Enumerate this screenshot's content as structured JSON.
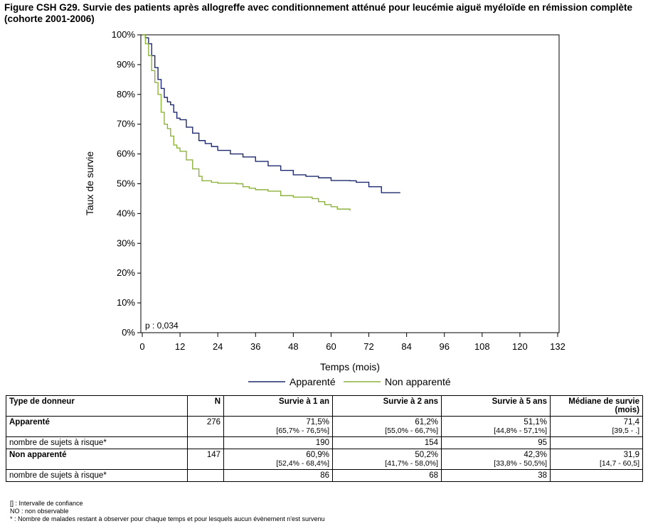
{
  "title": "Figure CSH G29. Survie des patients après allogreffe avec conditionnement atténué pour leucémie aiguë myéloïde en rémission complète (cohorte 2001-2006)",
  "chart_data": {
    "type": "line",
    "step": true,
    "ylabel": "Taux de survie",
    "xlabel": "Temps (mois)",
    "xlim": [
      0,
      132
    ],
    "ylim": [
      0,
      100
    ],
    "xticks": [
      0,
      12,
      24,
      36,
      48,
      60,
      72,
      84,
      96,
      108,
      120,
      132
    ],
    "yticks": [
      0,
      10,
      20,
      30,
      40,
      50,
      60,
      70,
      80,
      90,
      100
    ],
    "ytick_labels": [
      "0%",
      "10%",
      "20%",
      "30%",
      "40%",
      "50%",
      "60%",
      "70%",
      "80%",
      "90%",
      "100%"
    ],
    "annotation": "p : 0,034",
    "legend_position": "bottom",
    "grid": false,
    "series": [
      {
        "name": "Apparenté",
        "color": "#1f2a6e",
        "points": [
          [
            0,
            100
          ],
          [
            1,
            99
          ],
          [
            2,
            97
          ],
          [
            3,
            93
          ],
          [
            4,
            89
          ],
          [
            5,
            85
          ],
          [
            6,
            82
          ],
          [
            7,
            79
          ],
          [
            8,
            77.5
          ],
          [
            9,
            76.5
          ],
          [
            10,
            74
          ],
          [
            11,
            72
          ],
          [
            12,
            71.5
          ],
          [
            14,
            69
          ],
          [
            16,
            67
          ],
          [
            18,
            64.5
          ],
          [
            20,
            63.5
          ],
          [
            22,
            62.5
          ],
          [
            24,
            61.2
          ],
          [
            28,
            60
          ],
          [
            32,
            59
          ],
          [
            36,
            57.5
          ],
          [
            40,
            56
          ],
          [
            44,
            54.5
          ],
          [
            48,
            53
          ],
          [
            52,
            52.5
          ],
          [
            56,
            52
          ],
          [
            60,
            51.1
          ],
          [
            66,
            51
          ],
          [
            68,
            50.5
          ],
          [
            72,
            49
          ],
          [
            76,
            47
          ],
          [
            82,
            47
          ]
        ]
      },
      {
        "name": "Non apparenté",
        "color": "#8db33c",
        "points": [
          [
            0,
            100
          ],
          [
            1,
            97
          ],
          [
            2,
            93
          ],
          [
            3,
            88
          ],
          [
            4,
            84
          ],
          [
            5,
            80
          ],
          [
            6,
            74
          ],
          [
            7,
            70
          ],
          [
            8,
            68.5
          ],
          [
            9,
            66
          ],
          [
            10,
            63
          ],
          [
            11,
            62
          ],
          [
            12,
            60.9
          ],
          [
            14,
            58
          ],
          [
            16,
            55
          ],
          [
            18,
            52.5
          ],
          [
            19,
            51
          ],
          [
            22,
            50.5
          ],
          [
            24,
            50.2
          ],
          [
            30,
            50
          ],
          [
            32,
            49
          ],
          [
            34,
            48.5
          ],
          [
            36,
            48
          ],
          [
            40,
            47.5
          ],
          [
            44,
            46
          ],
          [
            48,
            45.5
          ],
          [
            54,
            45
          ],
          [
            56,
            44
          ],
          [
            58,
            43
          ],
          [
            60,
            42.3
          ],
          [
            62,
            41.5
          ],
          [
            66,
            41
          ]
        ]
      }
    ]
  },
  "table": {
    "headers": [
      "Type de donneur",
      "N",
      "Survie à 1 an",
      "Survie à 2 ans",
      "Survie à 5 ans",
      "Médiane de survie (mois)"
    ],
    "rows": [
      {
        "group": "Apparenté",
        "n": "276",
        "s1": "71,5%",
        "s1ci": "[65,7% - 76,5%]",
        "s2": "61,2%",
        "s2ci": "[55,0% - 66,7%]",
        "s5": "51,1%",
        "s5ci": "[44,8% - 57,1%]",
        "med": "71,4",
        "medci": "[39,5 - .]",
        "risk_label": "nombre de sujets à risque*",
        "r1": "190",
        "r2": "154",
        "r5": "95"
      },
      {
        "group": "Non apparenté",
        "n": "147",
        "s1": "60,9%",
        "s1ci": "[52,4% - 68,4%]",
        "s2": "50,2%",
        "s2ci": "[41,7% - 58,0%]",
        "s5": "42,3%",
        "s5ci": "[33,8% - 50,5%]",
        "med": "31,9",
        "medci": "[14,7 - 60,5]",
        "risk_label": "nombre de sujets à risque*",
        "r1": "86",
        "r2": "68",
        "r5": "38"
      }
    ]
  },
  "notes": [
    "[] : Intervalle de confiance",
    "NO : non observable",
    "* : Nombre de malades restant à observer pour chaque temps et pour lesquels aucun évènement n'est survenu"
  ]
}
